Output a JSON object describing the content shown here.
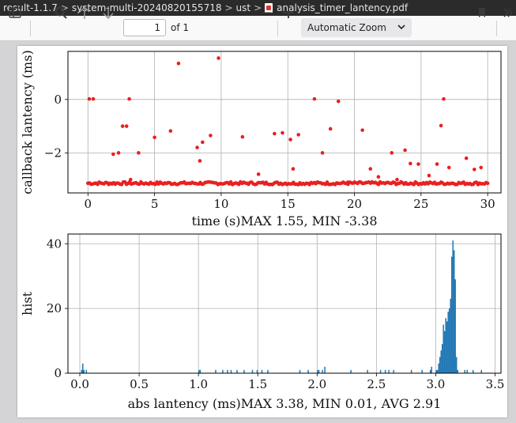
{
  "breadcrumb": {
    "items": [
      "result-1.1.7",
      "system-multi-20240820155718",
      "ust",
      "analysis_timer_lantency.pdf"
    ],
    "separator": ">"
  },
  "toolbar": {
    "sidebar_icon": "sidebar-toggle-icon",
    "search_icon": "search-icon",
    "prev_icon": "arrow-up-icon",
    "next_icon": "arrow-down-icon",
    "page_value": "1",
    "page_count_label": "of 1",
    "zoom_out_label": "—",
    "zoom_in_label": "+",
    "zoom_value": "Automatic Zoom",
    "bookmark_icon": "bookmark-icon",
    "more_icon": "double-chevron-right-icon"
  },
  "colors": {
    "scatter": "#e8201f",
    "hist": "#1f77b4",
    "grid": "#b0b0b0"
  },
  "chart_data": [
    {
      "type": "scatter",
      "xlabel": "time (s)MAX 1.55, MIN -3.38",
      "ylabel": "callback lantency (ms)",
      "xlim": [
        -1.5,
        31
      ],
      "ylim": [
        -3.5,
        1.8
      ],
      "xticks": [
        0,
        5,
        10,
        15,
        20,
        25,
        30
      ],
      "yticks": [
        0,
        -2
      ],
      "ytick_labels": [
        "0",
        "−2"
      ],
      "grid": true,
      "outliers": [
        [
          0.1,
          0.02
        ],
        [
          0.4,
          0.02
        ],
        [
          1.9,
          -2.05
        ],
        [
          2.3,
          -2.0
        ],
        [
          2.6,
          -1.0
        ],
        [
          2.9,
          -1.0
        ],
        [
          3.1,
          0.02
        ],
        [
          3.2,
          -3.0
        ],
        [
          3.8,
          -2.0
        ],
        [
          5.0,
          -1.42
        ],
        [
          6.2,
          -1.18
        ],
        [
          6.8,
          1.35
        ],
        [
          8.2,
          -1.8
        ],
        [
          8.4,
          -2.3
        ],
        [
          8.6,
          -1.6
        ],
        [
          9.2,
          -1.35
        ],
        [
          9.8,
          1.55
        ],
        [
          11.6,
          -1.4
        ],
        [
          12.8,
          -2.8
        ],
        [
          14.0,
          -1.28
        ],
        [
          14.6,
          -1.25
        ],
        [
          15.2,
          -1.5
        ],
        [
          15.4,
          -2.6
        ],
        [
          15.8,
          -1.32
        ],
        [
          17.0,
          0.02
        ],
        [
          17.6,
          -2.0
        ],
        [
          18.2,
          -1.1
        ],
        [
          18.8,
          -0.07
        ],
        [
          19.5,
          -3.1
        ],
        [
          20.6,
          -1.15
        ],
        [
          21.2,
          -2.6
        ],
        [
          21.8,
          -2.9
        ],
        [
          22.8,
          -2.0
        ],
        [
          23.2,
          -3.0
        ],
        [
          23.8,
          -1.9
        ],
        [
          24.2,
          -2.4
        ],
        [
          24.8,
          -2.42
        ],
        [
          25.6,
          -2.85
        ],
        [
          26.2,
          -2.42
        ],
        [
          26.5,
          -0.98
        ],
        [
          26.7,
          0.02
        ],
        [
          27.1,
          -2.55
        ],
        [
          28.4,
          -2.2
        ],
        [
          29.0,
          -2.62
        ],
        [
          29.5,
          -2.55
        ]
      ],
      "baseline": {
        "from": 0,
        "to": 30,
        "y_min": -3.25,
        "y_max": -3.0,
        "count": 250
      }
    },
    {
      "type": "bar",
      "xlabel": "abs lantency (ms)MAX 3.38, MIN 0.01, AVG 2.91",
      "ylabel": "hist",
      "xlim": [
        -0.1,
        3.55
      ],
      "ylim": [
        0,
        43
      ],
      "xticks": [
        0.0,
        0.5,
        1.0,
        1.5,
        2.0,
        2.5,
        3.0,
        3.5
      ],
      "xtick_labels": [
        "0.0",
        "0.5",
        "1.0",
        "1.5",
        "2.0",
        "2.5",
        "3.0",
        "3.5"
      ],
      "yticks": [
        0,
        20,
        40
      ],
      "grid": true,
      "bin_width": 0.01,
      "bins": [
        [
          0.01,
          1
        ],
        [
          0.02,
          3
        ],
        [
          0.03,
          1
        ],
        [
          0.05,
          1
        ],
        [
          1.0,
          1
        ],
        [
          1.01,
          1
        ],
        [
          1.14,
          1
        ],
        [
          1.2,
          1
        ],
        [
          1.24,
          1
        ],
        [
          1.27,
          1
        ],
        [
          1.32,
          1
        ],
        [
          1.38,
          1
        ],
        [
          1.45,
          1
        ],
        [
          1.49,
          1
        ],
        [
          1.53,
          1
        ],
        [
          1.58,
          1
        ],
        [
          1.85,
          1
        ],
        [
          1.92,
          1
        ],
        [
          2.0,
          1
        ],
        [
          2.01,
          1
        ],
        [
          2.04,
          1
        ],
        [
          2.06,
          2
        ],
        [
          2.28,
          1
        ],
        [
          2.42,
          1
        ],
        [
          2.53,
          1
        ],
        [
          2.57,
          1
        ],
        [
          2.6,
          1
        ],
        [
          2.64,
          1
        ],
        [
          2.79,
          1
        ],
        [
          2.88,
          1
        ],
        [
          2.95,
          1
        ],
        [
          2.96,
          2
        ],
        [
          3.0,
          1
        ],
        [
          3.01,
          1
        ],
        [
          3.02,
          3
        ],
        [
          3.03,
          5
        ],
        [
          3.04,
          7
        ],
        [
          3.05,
          9
        ],
        [
          3.06,
          15
        ],
        [
          3.07,
          13
        ],
        [
          3.08,
          17
        ],
        [
          3.09,
          16
        ],
        [
          3.1,
          19
        ],
        [
          3.11,
          20
        ],
        [
          3.12,
          23
        ],
        [
          3.13,
          36
        ],
        [
          3.14,
          41
        ],
        [
          3.15,
          38
        ],
        [
          3.16,
          29
        ],
        [
          3.17,
          5
        ],
        [
          3.18,
          1
        ],
        [
          3.24,
          1
        ],
        [
          3.26,
          1
        ],
        [
          3.31,
          1
        ],
        [
          3.38,
          1
        ]
      ]
    }
  ]
}
